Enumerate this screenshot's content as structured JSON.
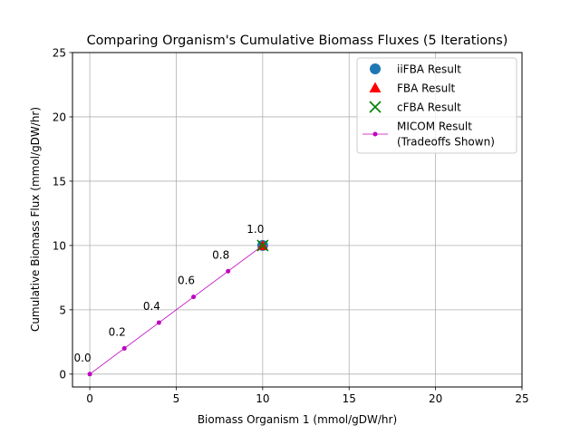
{
  "chart_data": {
    "type": "scatter",
    "title": "Comparing Organism's Cumulative Biomass Fluxes (5 Iterations)",
    "xlabel": "Biomass Organism 1 (mmol/gDW/hr)",
    "ylabel": "Cumulative Biomass Flux (mmol/gDW/hr)",
    "xlim": [
      -1,
      25
    ],
    "ylim": [
      -1,
      25
    ],
    "xticks": [
      0,
      5,
      10,
      15,
      20,
      25
    ],
    "yticks": [
      0,
      5,
      10,
      15,
      20,
      25
    ],
    "xtick_labels": [
      "0",
      "5",
      "10",
      "15",
      "20",
      "25"
    ],
    "ytick_labels": [
      "0",
      "5",
      "10",
      "15",
      "20",
      "25"
    ],
    "grid": true,
    "legend_position": "top-right",
    "series": [
      {
        "name": "iiFBA Result",
        "marker": "circle",
        "color": "#1f77b4",
        "x": [
          10
        ],
        "y": [
          10
        ]
      },
      {
        "name": "FBA Result",
        "marker": "triangle",
        "color": "#ff0000",
        "x": [
          10
        ],
        "y": [
          10
        ]
      },
      {
        "name": "cFBA Result",
        "marker": "x",
        "color": "#008000",
        "x": [
          10
        ],
        "y": [
          10
        ]
      },
      {
        "name": "MICOM Result",
        "name_line2": "(Tradeoffs Shown)",
        "marker": "dot-line",
        "color": "#bf00bf",
        "x": [
          0,
          2,
          4,
          6,
          8,
          10
        ],
        "y": [
          0,
          2,
          4,
          6,
          8,
          10
        ],
        "point_labels": [
          "0.0",
          "0.2",
          "0.4",
          "0.6",
          "0.8",
          "1.0"
        ]
      }
    ]
  }
}
